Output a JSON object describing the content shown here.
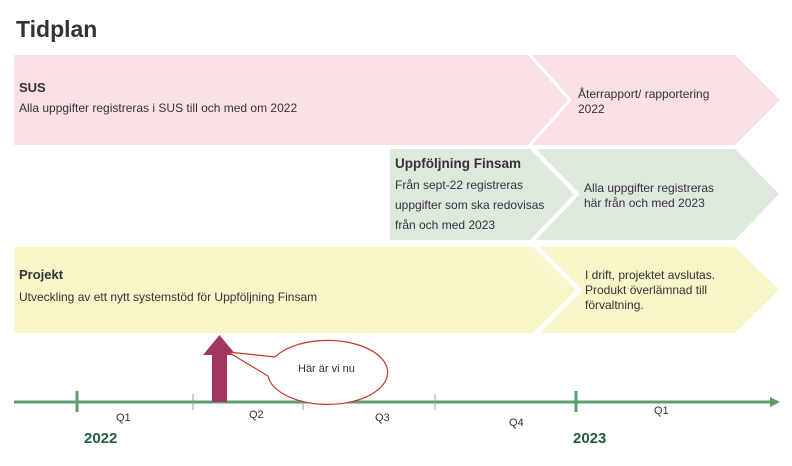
{
  "title": "Tidplan",
  "rows": {
    "sus": {
      "heading": "SUS",
      "text": "Alla uppgifter registreras i SUS till och med om 2022",
      "next": "Återrapport/ rapportering 2022"
    },
    "finsam": {
      "heading": "Uppföljning Finsam",
      "line1": "Från sept-22 registreras",
      "line2": "uppgifter som ska redovisas",
      "line3": "från och med 2023",
      "next_line1": "Alla uppgifter registreras",
      "next_line2": "här från och med 2023"
    },
    "projekt": {
      "heading": "Projekt",
      "text": "Utveckling av ett nytt systemstöd för Uppföljning Finsam",
      "next_line1": "I drift, projektet avslutas.",
      "next_line2": "Produkt överlämnad till",
      "next_line3": "förvaltning."
    }
  },
  "callout": "Här är vi nu",
  "timeline": {
    "quarters": [
      "Q1",
      "Q2",
      "Q3",
      "Q4",
      "Q1"
    ],
    "years": [
      "2022",
      "2023"
    ]
  },
  "colors": {
    "pink": "#fadfe5",
    "green": "#dde9dc",
    "yellow": "#f8f6c9",
    "axis": "#5e9e6e",
    "marker": "#a2365f"
  }
}
